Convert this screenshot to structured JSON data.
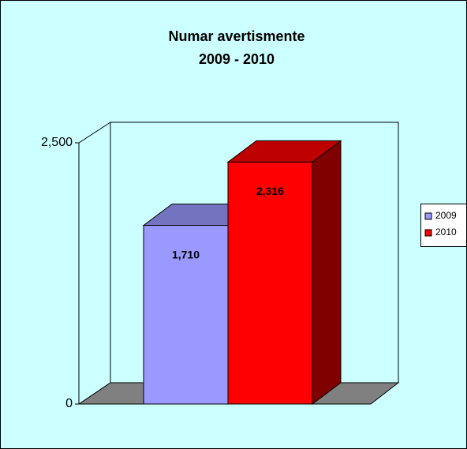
{
  "chart_data": {
    "type": "bar3d",
    "title": "Numar avertismente",
    "subtitle": "2009 - 2010",
    "categories": [
      null
    ],
    "series": [
      {
        "name": "2009",
        "color": "#9999ff",
        "values": [
          1710
        ],
        "value_labels": [
          "1,710"
        ]
      },
      {
        "name": "2010",
        "color": "#ff0000",
        "values": [
          2316
        ],
        "value_labels": [
          "2,316"
        ]
      }
    ],
    "ylim": [
      0,
      2500
    ],
    "yticks": [
      0,
      {
        "value": 2500,
        "label": "2,500"
      }
    ],
    "grid": false,
    "legend": "right"
  }
}
